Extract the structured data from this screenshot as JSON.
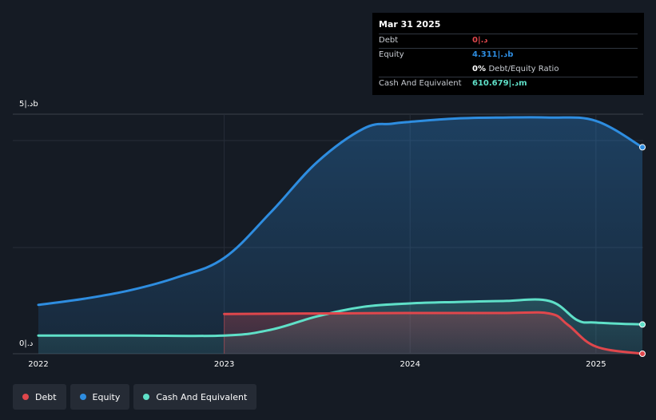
{
  "tooltip": {
    "date": "Mar 31 2025",
    "rows": {
      "debt": {
        "label": "Debt",
        "value": "0|.د"
      },
      "equity": {
        "label": "Equity",
        "value": "4.311|.دb"
      },
      "ratio": {
        "value": "0%",
        "suffix": "Debt/Equity Ratio"
      },
      "cash": {
        "label": "Cash And Equivalent",
        "value": "610.679|.دm"
      }
    }
  },
  "colors": {
    "debt": "#e0474c",
    "equity": "#2e8de0",
    "cash": "#5fe0c8",
    "background": "#151b24"
  },
  "legend": [
    {
      "key": "debt",
      "label": "Debt",
      "color": "#e0474c"
    },
    {
      "key": "equity",
      "label": "Equity",
      "color": "#2e8de0"
    },
    {
      "key": "cash",
      "label": "Cash And Equivalent",
      "color": "#5fe0c8"
    }
  ],
  "chart_data": {
    "type": "area",
    "y_max_label": "5|.دb",
    "y_min_label": "0|.د",
    "ylim": [
      0,
      5
    ],
    "xlim": [
      2022.0,
      2025.25
    ],
    "x_tick_labels": [
      "2022",
      "2023",
      "2024",
      "2025"
    ],
    "grid": true,
    "legend_position": "bottom-left",
    "series": [
      {
        "name": "Equity",
        "key": "equity",
        "x": [
          2022.0,
          2022.25,
          2022.5,
          2022.75,
          2023.0,
          2023.25,
          2023.5,
          2023.75,
          2023.9,
          2024.0,
          2024.25,
          2024.5,
          2024.75,
          2025.0,
          2025.25
        ],
        "y": [
          1.02,
          1.15,
          1.33,
          1.6,
          2.0,
          2.95,
          4.0,
          4.7,
          4.8,
          4.84,
          4.91,
          4.93,
          4.93,
          4.86,
          4.31
        ]
      },
      {
        "name": "Cash And Equivalent",
        "key": "cash",
        "x": [
          2022.0,
          2022.5,
          2023.0,
          2023.25,
          2023.5,
          2023.75,
          2024.0,
          2024.25,
          2024.5,
          2024.75,
          2024.9,
          2025.0,
          2025.25
        ],
        "y": [
          0.38,
          0.38,
          0.38,
          0.5,
          0.78,
          0.98,
          1.05,
          1.08,
          1.1,
          1.1,
          0.7,
          0.65,
          0.61
        ]
      },
      {
        "name": "Debt",
        "key": "debt",
        "x": [
          2023.0,
          2023.5,
          2024.0,
          2024.5,
          2024.75,
          2024.85,
          2025.0,
          2025.25
        ],
        "y": [
          0.83,
          0.84,
          0.85,
          0.85,
          0.84,
          0.6,
          0.15,
          0.0
        ]
      }
    ]
  }
}
